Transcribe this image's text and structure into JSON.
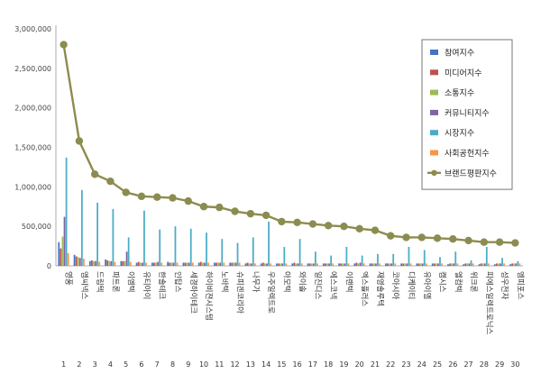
{
  "chart_data": {
    "type": "bar",
    "ylim": [
      0,
      3000000
    ],
    "yticks": [
      "0",
      "500,000",
      "1,000,000",
      "1,500,000",
      "2,000,000",
      "2,500,000",
      "3,000,000"
    ],
    "ytick_values": [
      0,
      500000,
      1000000,
      1500000,
      2000000,
      2500000,
      3000000
    ],
    "grid": false,
    "legend_position": "top-right",
    "categories": [
      "영풍",
      "엠씨넥스",
      "드림텍",
      "파트론",
      "이엠텍",
      "유티아이",
      "한솔테크",
      "인탑스",
      "세경하이테크",
      "하이비젼시스템",
      "노바텍",
      "슈피겐코리아",
      "나무가",
      "우주일렉트로",
      "아모텍",
      "와이솔",
      "일진디스",
      "에스코넥",
      "이랜텍",
      "엑스플러스",
      "재영솔루텍",
      "코아시아",
      "디케이티",
      "유아이엘",
      "캠시스",
      "엘컴텍",
      "위크론",
      "피에스일렉트로닉스",
      "성우전자",
      "엠피포스"
    ],
    "numbers": [
      "1",
      "2",
      "3",
      "4",
      "5",
      "6",
      "7",
      "8",
      "9",
      "10",
      "11",
      "12",
      "13",
      "14",
      "15",
      "16",
      "17",
      "18",
      "19",
      "20",
      "21",
      "22",
      "23",
      "24",
      "25",
      "26",
      "27",
      "28",
      "29",
      "30"
    ],
    "series": [
      {
        "name": "참여지수",
        "color": "#4472c4",
        "kind": "bar",
        "values": [
          300000,
          140000,
          60000,
          80000,
          60000,
          40000,
          40000,
          50000,
          40000,
          40000,
          40000,
          40000,
          30000,
          30000,
          30000,
          30000,
          30000,
          30000,
          30000,
          30000,
          30000,
          30000,
          30000,
          30000,
          30000,
          20000,
          20000,
          20000,
          20000,
          20000
        ]
      },
      {
        "name": "미디어지수",
        "color": "#c0504d",
        "kind": "bar",
        "values": [
          220000,
          120000,
          70000,
          70000,
          60000,
          50000,
          40000,
          40000,
          40000,
          50000,
          40000,
          40000,
          40000,
          40000,
          30000,
          40000,
          30000,
          30000,
          30000,
          40000,
          30000,
          30000,
          30000,
          30000,
          30000,
          30000,
          30000,
          30000,
          30000,
          30000
        ]
      },
      {
        "name": "소통지수",
        "color": "#9bbb59",
        "kind": "bar",
        "values": [
          370000,
          110000,
          60000,
          60000,
          60000,
          40000,
          40000,
          40000,
          40000,
          40000,
          40000,
          40000,
          30000,
          30000,
          30000,
          30000,
          30000,
          30000,
          30000,
          30000,
          30000,
          30000,
          30000,
          30000,
          30000,
          30000,
          30000,
          30000,
          30000,
          30000
        ]
      },
      {
        "name": "커뮤니티지수",
        "color": "#8064a2",
        "kind": "bar",
        "values": [
          620000,
          100000,
          60000,
          60000,
          180000,
          40000,
          50000,
          40000,
          40000,
          40000,
          40000,
          40000,
          30000,
          30000,
          30000,
          30000,
          30000,
          30000,
          30000,
          40000,
          30000,
          30000,
          30000,
          30000,
          30000,
          30000,
          30000,
          30000,
          30000,
          30000
        ]
      },
      {
        "name": "시장지수",
        "color": "#4bacc6",
        "kind": "bar",
        "values": [
          1370000,
          960000,
          800000,
          720000,
          360000,
          700000,
          460000,
          500000,
          470000,
          420000,
          340000,
          290000,
          360000,
          560000,
          240000,
          340000,
          180000,
          130000,
          240000,
          130000,
          150000,
          150000,
          240000,
          200000,
          110000,
          180000,
          70000,
          240000,
          100000,
          60000
        ]
      },
      {
        "name": "사회공헌지수",
        "color": "#f79646",
        "kind": "bar",
        "values": [
          160000,
          90000,
          50000,
          50000,
          50000,
          40000,
          40000,
          40000,
          40000,
          40000,
          40000,
          40000,
          30000,
          30000,
          30000,
          30000,
          30000,
          30000,
          30000,
          30000,
          30000,
          30000,
          30000,
          30000,
          30000,
          30000,
          30000,
          30000,
          30000,
          30000
        ]
      },
      {
        "name": "브랜드평판지수",
        "color": "#8c8c50",
        "kind": "line",
        "values": [
          2800000,
          1580000,
          1160000,
          1070000,
          930000,
          880000,
          870000,
          860000,
          820000,
          750000,
          740000,
          690000,
          660000,
          640000,
          560000,
          550000,
          530000,
          510000,
          500000,
          470000,
          450000,
          380000,
          360000,
          360000,
          350000,
          340000,
          320000,
          300000,
          300000,
          290000
        ]
      }
    ]
  }
}
